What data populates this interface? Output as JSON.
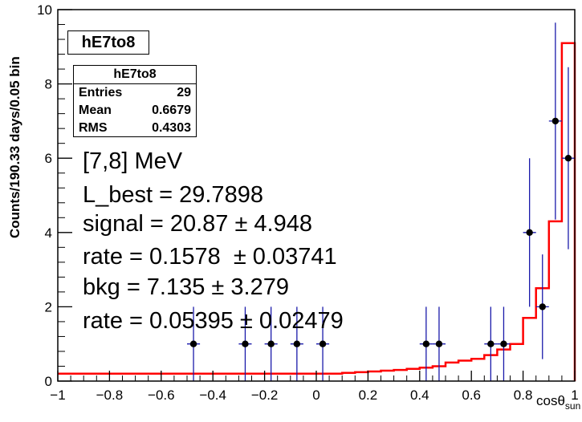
{
  "chart_data": {
    "type": "histogram",
    "title": "hE7to8",
    "ylabel": "Counts/190.33 days/0.05 bin",
    "xlabel": "cosθ",
    "xlabel_sub": "sun",
    "xlim": [
      -1,
      1
    ],
    "ylim": [
      0,
      10
    ],
    "x_ticks": [
      "−1",
      "−0.8",
      "−0.6",
      "−0.4",
      "−0.2",
      "0",
      "0.2",
      "0.4",
      "0.6",
      "0.8",
      "1"
    ],
    "y_ticks": [
      "0",
      "2",
      "4",
      "6",
      "8",
      "10"
    ],
    "data_points": [
      {
        "x": -0.475,
        "y": 1,
        "err": 1
      },
      {
        "x": -0.275,
        "y": 1,
        "err": 1
      },
      {
        "x": -0.175,
        "y": 1,
        "err": 1
      },
      {
        "x": -0.075,
        "y": 1,
        "err": 1
      },
      {
        "x": 0.025,
        "y": 1,
        "err": 1
      },
      {
        "x": 0.425,
        "y": 1,
        "err": 1
      },
      {
        "x": 0.475,
        "y": 1,
        "err": 1
      },
      {
        "x": 0.675,
        "y": 1,
        "err": 1
      },
      {
        "x": 0.725,
        "y": 1,
        "err": 1
      },
      {
        "x": 0.825,
        "y": 4,
        "err": 2
      },
      {
        "x": 0.875,
        "y": 2,
        "err": 1.41
      },
      {
        "x": 0.925,
        "y": 7,
        "err": 2.65
      },
      {
        "x": 0.975,
        "y": 6,
        "err": 2.45
      }
    ],
    "fit_histogram": {
      "bin_width": 0.05,
      "x_start": -1,
      "values": [
        0.2,
        0.2,
        0.2,
        0.2,
        0.2,
        0.2,
        0.2,
        0.2,
        0.2,
        0.2,
        0.2,
        0.2,
        0.2,
        0.2,
        0.2,
        0.2,
        0.2,
        0.2,
        0.2,
        0.2,
        0.2,
        0.2,
        0.22,
        0.24,
        0.26,
        0.28,
        0.3,
        0.33,
        0.36,
        0.4,
        0.5,
        0.55,
        0.6,
        0.7,
        0.85,
        1.0,
        1.7,
        2.5,
        4.3,
        9.1
      ]
    },
    "stats": {
      "name": "hE7to8",
      "rows": [
        {
          "label": "Entries",
          "value": "29"
        },
        {
          "label": "Mean",
          "value": "0.6679"
        },
        {
          "label": "RMS",
          "value": "0.4303"
        }
      ]
    },
    "annotations": [
      "[7,8] MeV",
      "L_best = 29.7898",
      "signal = 20.87 ± 4.948",
      "rate = 0.1578  ± 0.03741",
      "bkg = 7.135 ± 3.279",
      "rate = 0.05395 ± 0.02479"
    ],
    "colors": {
      "fit": "#ff0000",
      "error_bar": "#1a1aaa",
      "point": "#000000"
    }
  }
}
